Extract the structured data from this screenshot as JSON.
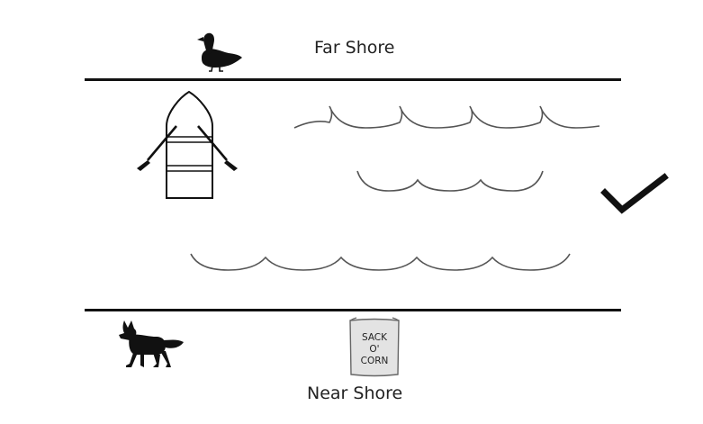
{
  "shores": {
    "far": {
      "label": "Far Shore"
    },
    "near": {
      "label": "Near Shore"
    }
  },
  "items": {
    "sack": {
      "line1": "SACK",
      "line2": "O'",
      "line3": "CORN"
    }
  },
  "icons": {
    "duck": "duck-icon",
    "fox": "fox-icon",
    "boat": "rowboat-icon",
    "sack": "sack-of-corn-icon",
    "check": "checkmark-icon"
  },
  "colors": {
    "ink": "#111111",
    "wave": "#555555",
    "sack_fill": "#e3e3e3"
  }
}
